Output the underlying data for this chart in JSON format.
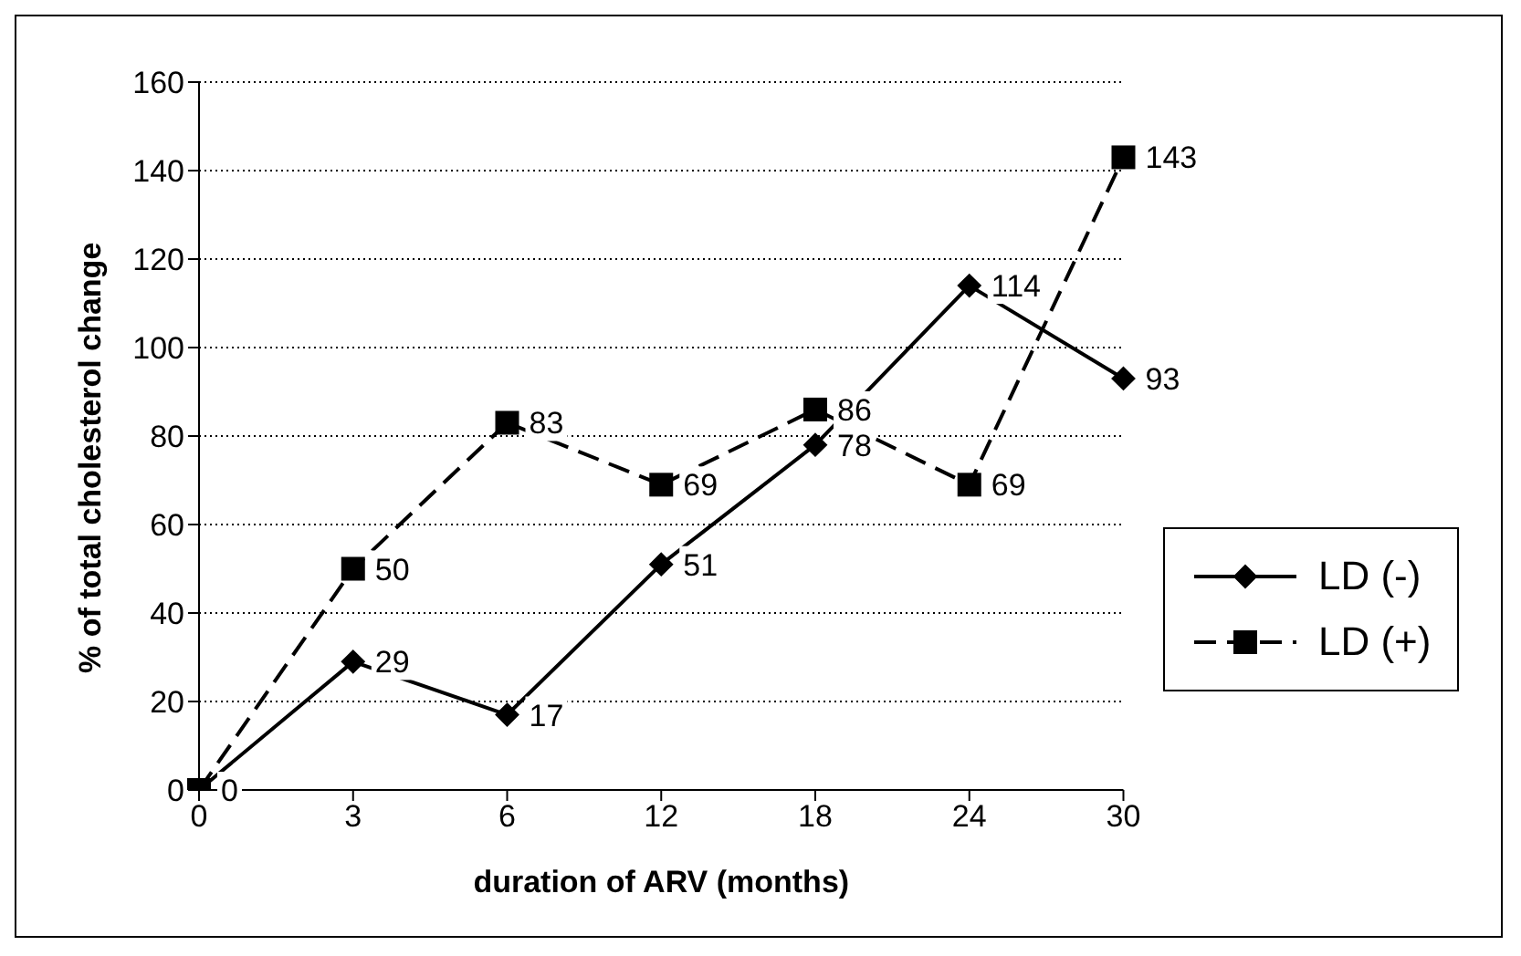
{
  "chart_data": {
    "type": "line",
    "xlabel": "duration of ARV (months)",
    "ylabel": "% of total cholesterol change",
    "categories": [
      "0",
      "3",
      "6",
      "12",
      "18",
      "24",
      "30"
    ],
    "series": [
      {
        "name": "LD (-)",
        "color": "#000000",
        "marker": "diamond",
        "line_style": "solid",
        "values": [
          0,
          29,
          17,
          51,
          78,
          114,
          93
        ],
        "value_labels": [
          "0",
          "29",
          "17",
          "51",
          "78",
          "114",
          "93"
        ]
      },
      {
        "name": "LD (+)",
        "color": "#000000",
        "marker": "square",
        "line_style": "dashed",
        "values": [
          0,
          50,
          83,
          69,
          86,
          69,
          143
        ],
        "value_labels": [
          null,
          "50",
          "83",
          "69",
          "86",
          "69",
          "143"
        ]
      }
    ],
    "ylim": [
      0,
      160
    ],
    "yticks": [
      0,
      20,
      40,
      60,
      80,
      100,
      120,
      140,
      160
    ],
    "grid": "y",
    "legend": "right"
  }
}
